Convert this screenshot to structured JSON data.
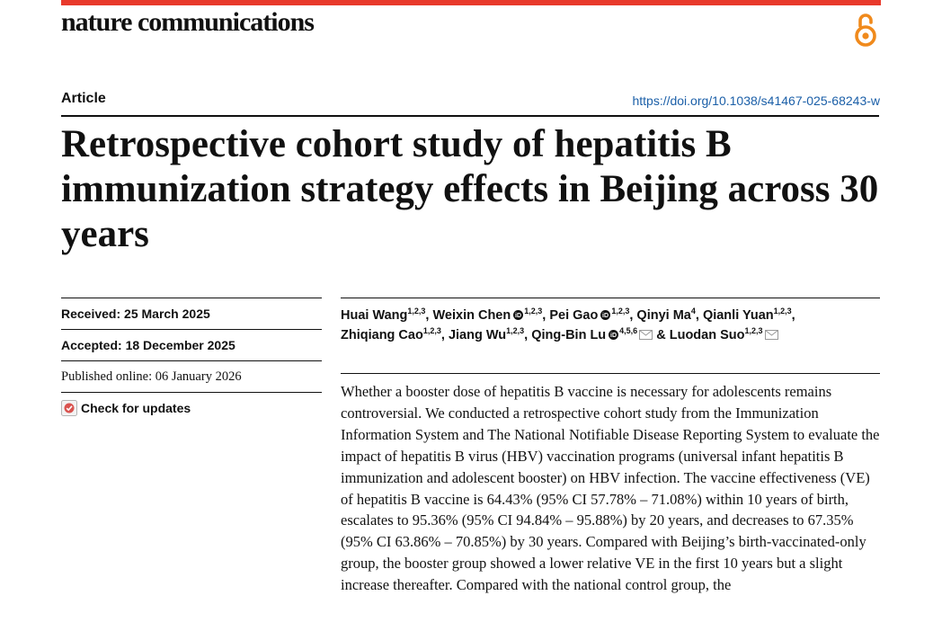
{
  "header": {
    "journal": "nature communications",
    "accent_color": "#e8392b",
    "open_access_icon": "open-access-icon"
  },
  "article": {
    "type": "Article",
    "doi": "https://doi.org/10.1038/s41467-025-68243-w",
    "title": "Retrospective cohort study of hepatitis B immunization strategy effects in Beijing across 30 years"
  },
  "meta": {
    "received": "Received: 25 March 2025",
    "accepted": "Accepted: 18 December 2025",
    "published": "Published online: 06 January 2026",
    "check_updates": "Check for updates"
  },
  "authors": [
    {
      "name": "Huai Wang",
      "aff": "1,2,3",
      "orcid": false,
      "email": false,
      "sep": ", "
    },
    {
      "name": "Weixin Chen",
      "aff": "1,2,3",
      "orcid": true,
      "email": false,
      "sep": ", "
    },
    {
      "name": "Pei Gao",
      "aff": "1,2,3",
      "orcid": true,
      "email": false,
      "sep": ", "
    },
    {
      "name": "Qinyi Ma",
      "aff": "4",
      "orcid": false,
      "email": false,
      "sep": ", "
    },
    {
      "name": "Qianli Yuan",
      "aff": "1,2,3",
      "orcid": false,
      "email": false,
      "sep": ", "
    },
    {
      "name": "Zhiqiang Cao",
      "aff": "1,2,3",
      "orcid": false,
      "email": false,
      "sep": ", "
    },
    {
      "name": "Jiang Wu",
      "aff": "1,2,3",
      "orcid": false,
      "email": false,
      "sep": ", "
    },
    {
      "name": "Qing-Bin Lu",
      "aff": "4,5,6",
      "orcid": true,
      "email": true,
      "sep": " & "
    },
    {
      "name": "Luodan Suo",
      "aff": "1,2,3",
      "orcid": false,
      "email": true,
      "sep": ""
    }
  ],
  "abstract": "Whether a booster dose of hepatitis B vaccine is necessary for adolescents remains controversial. We conducted a retrospective cohort study from the Immunization Information System and The National Notifiable Disease Reporting System to evaluate the impact of hepatitis B virus (HBV) vaccination programs (universal infant hepatitis B immunization and adolescent booster) on HBV infection. The vaccine effectiveness (VE) of hepatitis B vaccine is 64.43% (95% CI 57.78% – 71.08%) within 10 years of birth, escalates to 95.36% (95% CI 94.84% – 95.88%) by 20 years, and decreases to 67.35% (95% CI 63.86% – 70.85%) by 30 years. Compared with Beijing’s birth-vaccinated-only group, the booster group showed a lower relative VE in the first 10 years but a slight increase thereafter. Compared with the national control group, the"
}
